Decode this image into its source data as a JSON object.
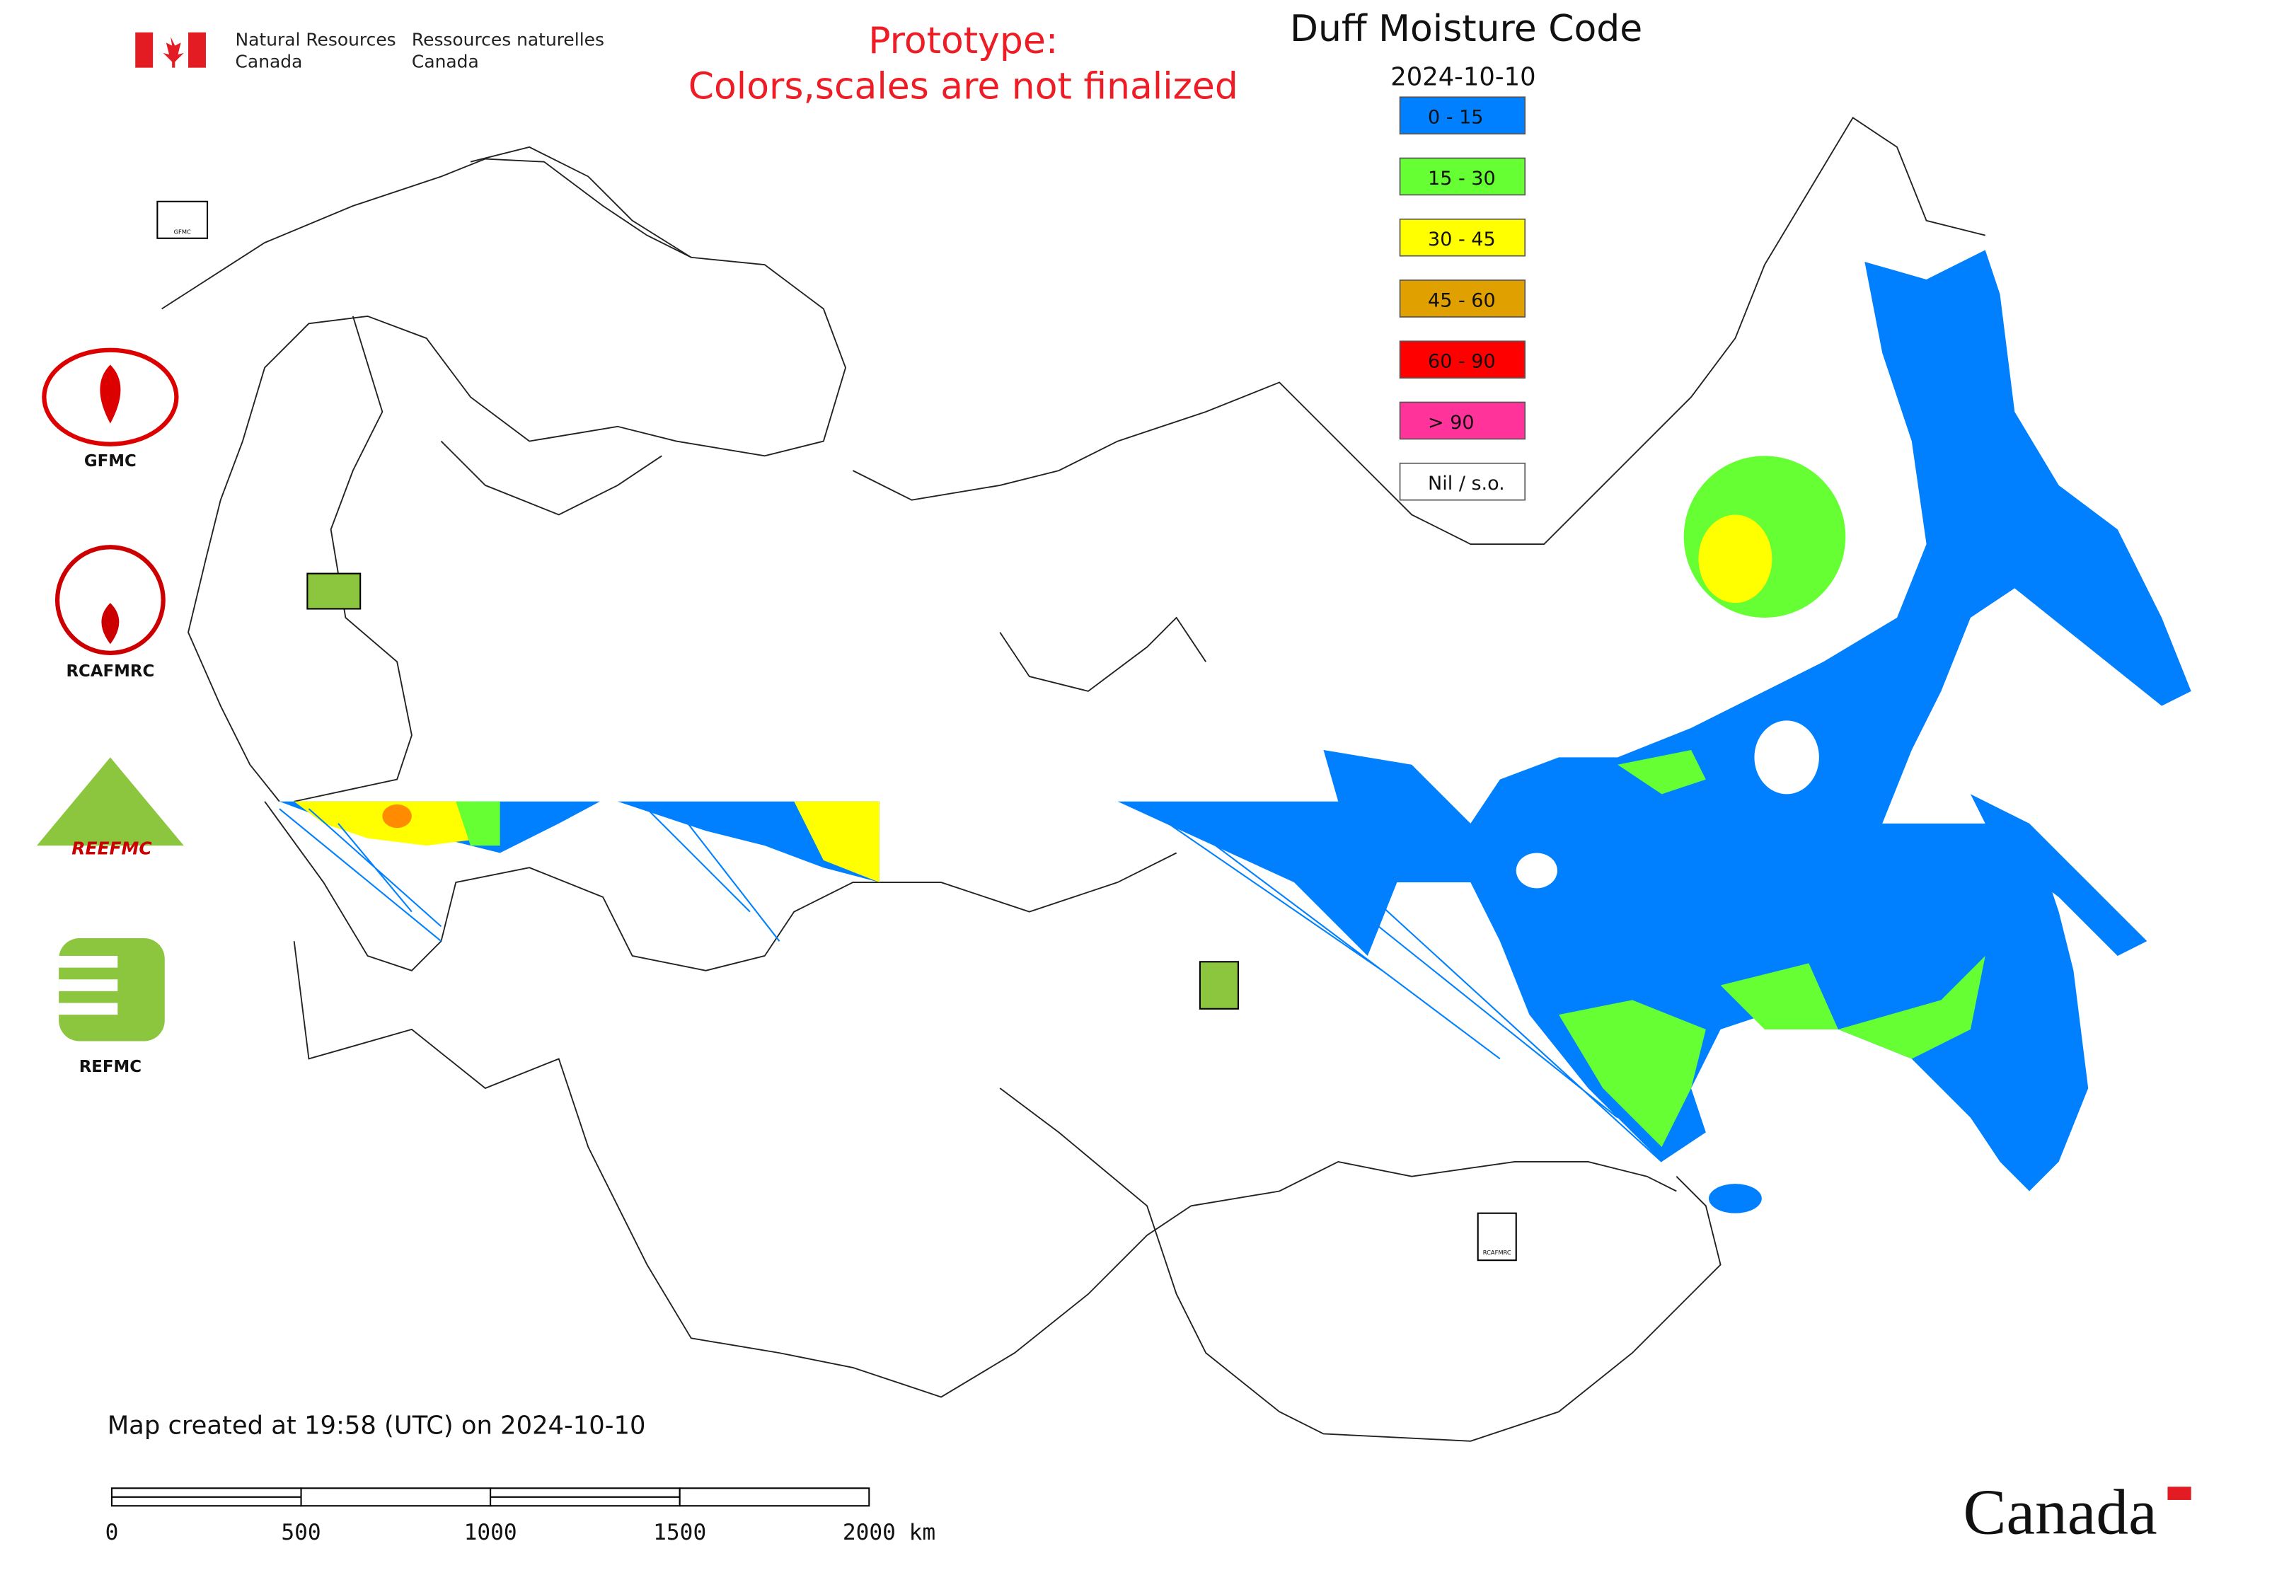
{
  "header": {
    "department_en": [
      "Natural Resources",
      "Canada"
    ],
    "department_fr": [
      "Ressources naturelles",
      "Canada"
    ]
  },
  "notice": [
    "Prototype:",
    "Colors,scales are not finalized"
  ],
  "title": "Duff Moisture Code",
  "date": "2024-10-10",
  "legend": [
    {
      "label": "0 - 15",
      "color": "#0080ff"
    },
    {
      "label": "15 - 30",
      "color": "#66ff33"
    },
    {
      "label": "30 - 45",
      "color": "#ffff00"
    },
    {
      "label": "45 - 60",
      "color": "#e0a000"
    },
    {
      "label": "60 - 90",
      "color": "#ff0000"
    },
    {
      "label": "> 90",
      "color": "#ff3399"
    },
    {
      "label": "Nil / s.o.",
      "color": "#ffffff"
    }
  ],
  "logos": [
    "GFMC",
    "RCAFMRC",
    "REEFMC",
    "REFMC"
  ],
  "footer": "Map created at 19:58 (UTC) on 2024-10-10",
  "scale_bar": [
    "0",
    "500",
    "1000",
    "1500",
    "2000 km"
  ],
  "wordmark": "Canada"
}
